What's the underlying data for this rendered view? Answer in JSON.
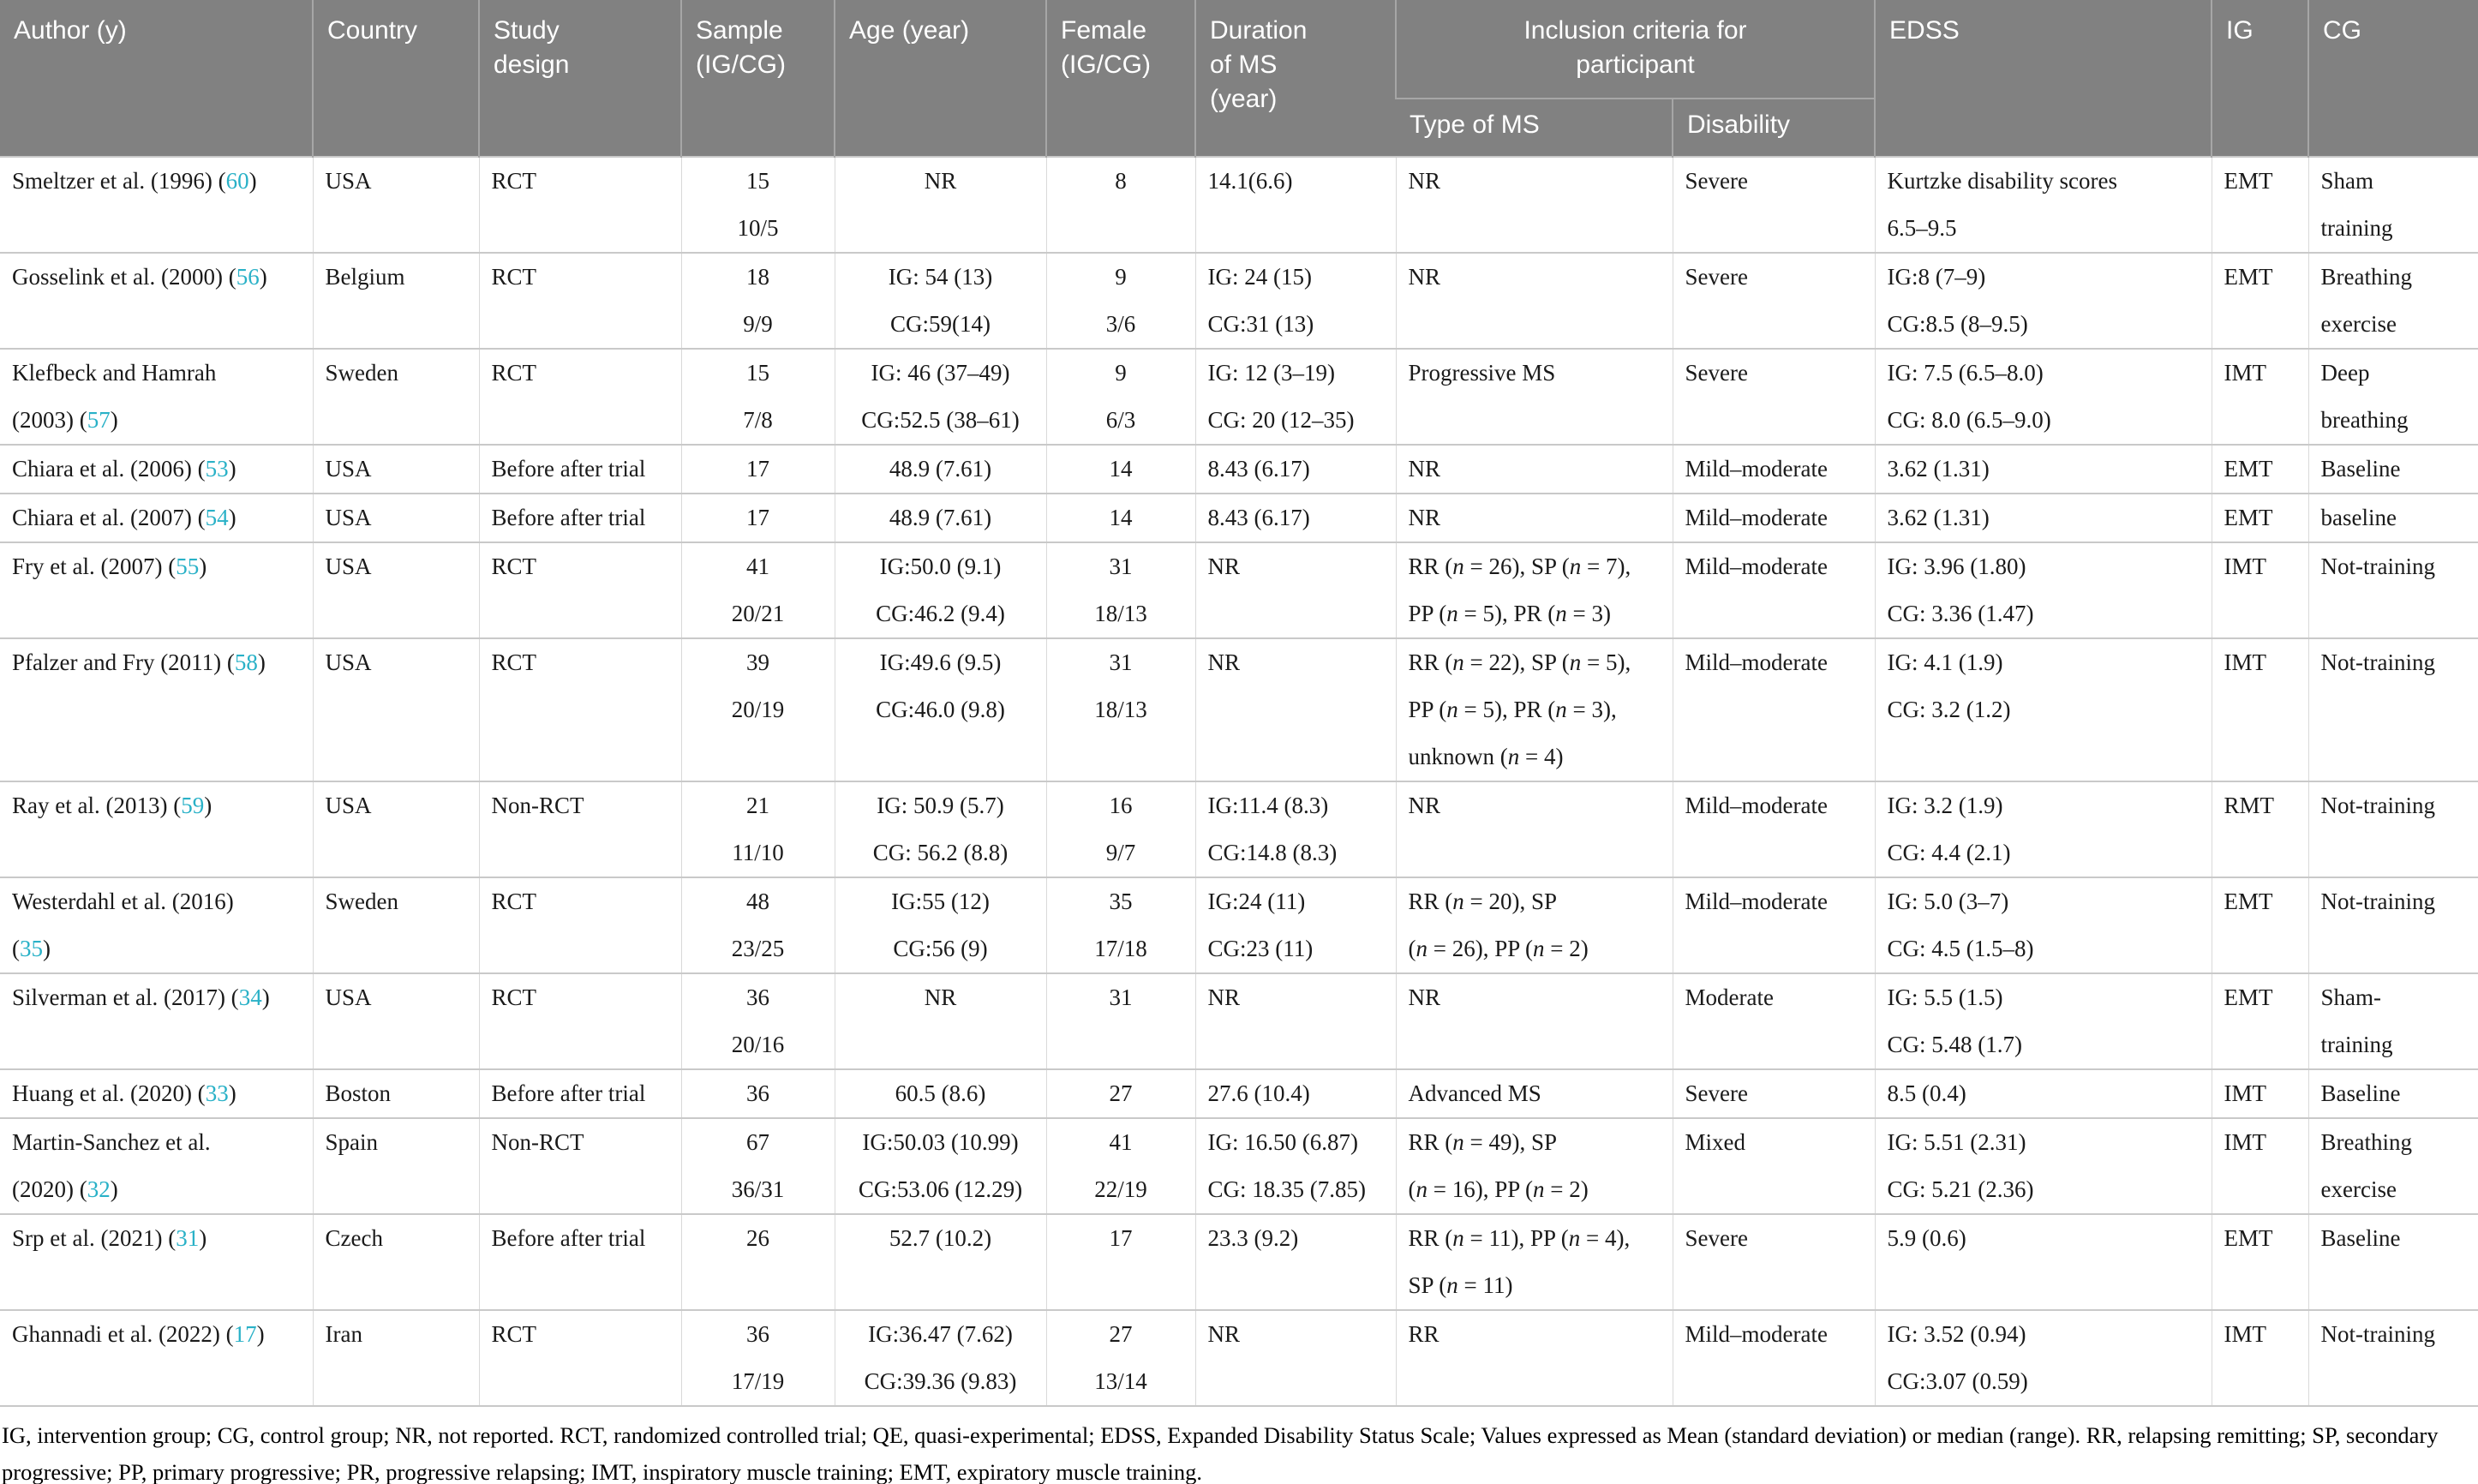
{
  "accent_colors": {
    "header_background": "#818181",
    "header_text": "#ffffff",
    "citation_teal": "#29b1c7",
    "row_border": "#c9c9c9"
  },
  "columns": {
    "author": "Author (y)",
    "country": "Country",
    "study_design": "Study\ndesign",
    "sample": "Sample\n(IG/CG)",
    "age": "Age (year)",
    "female": "Female\n(IG/CG)",
    "duration": "Duration\nof MS\n(year)",
    "inclusion_group": "Inclusion criteria for\nparticipant",
    "type_of_ms": "Type of MS",
    "disability": "Disability",
    "edss": "EDSS",
    "ig": "IG",
    "cg": "CG"
  },
  "rows": [
    {
      "author": [
        "Smeltzer et al. (1996) ([[60]])"
      ],
      "country": "USA",
      "design": "RCT",
      "sample": [
        "15",
        "10/5"
      ],
      "age": [
        "NR"
      ],
      "female": [
        "8"
      ],
      "duration": [
        "14.1(6.6)"
      ],
      "type_ms": [
        "NR"
      ],
      "disability": "Severe",
      "edss": [
        "Kurtzke disability scores",
        "6.5–9.5"
      ],
      "ig": "EMT",
      "cg": [
        "Sham",
        "training"
      ]
    },
    {
      "author": [
        "Gosselink et al. (2000) ([[56]])"
      ],
      "country": "Belgium",
      "design": "RCT",
      "sample": [
        "18",
        "9/9"
      ],
      "age": [
        "IG: 54 (13)",
        "CG:59(14)"
      ],
      "female": [
        "9",
        "3/6"
      ],
      "duration": [
        "IG: 24 (15)",
        "CG:31 (13)"
      ],
      "type_ms": [
        "NR"
      ],
      "disability": "Severe",
      "edss": [
        "IG:8 (7–9)",
        "CG:8.5 (8–9.5)"
      ],
      "ig": "EMT",
      "cg": [
        "Breathing",
        "exercise"
      ]
    },
    {
      "author": [
        "Klefbeck and Hamrah",
        "(2003) ([[57]])"
      ],
      "country": "Sweden",
      "design": "RCT",
      "sample": [
        "15",
        "7/8"
      ],
      "age": [
        "IG: 46 (37–49)",
        "CG:52.5 (38–61)"
      ],
      "female": [
        "9",
        "6/3"
      ],
      "duration": [
        "IG: 12 (3–19)",
        "CG: 20 (12–35)"
      ],
      "type_ms": [
        "Progressive MS"
      ],
      "disability": "Severe",
      "edss": [
        "IG: 7.5 (6.5–8.0)",
        "CG: 8.0 (6.5–9.0)"
      ],
      "ig": "IMT",
      "cg": [
        "Deep",
        "breathing"
      ]
    },
    {
      "author": [
        "Chiara et al. (2006) ([[53]])"
      ],
      "country": "USA",
      "design": "Before after trial",
      "sample": [
        "17"
      ],
      "age": [
        "48.9 (7.61)"
      ],
      "female": [
        "14"
      ],
      "duration": [
        "8.43 (6.17)"
      ],
      "type_ms": [
        "NR"
      ],
      "disability": "Mild–moderate",
      "edss": [
        "3.62 (1.31)"
      ],
      "ig": "EMT",
      "cg": [
        "Baseline"
      ]
    },
    {
      "author": [
        "Chiara et al. (2007) ([[54]])"
      ],
      "country": "USA",
      "design": "Before after trial",
      "sample": [
        "17"
      ],
      "age": [
        "48.9 (7.61)"
      ],
      "female": [
        "14"
      ],
      "duration": [
        "8.43 (6.17)"
      ],
      "type_ms": [
        "NR"
      ],
      "disability": "Mild–moderate",
      "edss": [
        "3.62 (1.31)"
      ],
      "ig": "EMT",
      "cg": [
        "baseline"
      ]
    },
    {
      "author": [
        "Fry et al. (2007) ([[55]])"
      ],
      "country": "USA",
      "design": "RCT",
      "sample": [
        "41",
        "20/21"
      ],
      "age": [
        "IG:50.0 (9.1)",
        "CG:46.2 (9.4)"
      ],
      "female": [
        "31",
        "18/13"
      ],
      "duration": [
        "NR"
      ],
      "type_ms": [
        "RR (n = 26), SP (n = 7),",
        "PP (n = 5), PR (n = 3)"
      ],
      "disability": "Mild–moderate",
      "edss": [
        "IG: 3.96 (1.80)",
        "CG: 3.36 (1.47)"
      ],
      "ig": "IMT",
      "cg": [
        "Not-training"
      ]
    },
    {
      "author": [
        "Pfalzer and Fry (2011) ([[58]])"
      ],
      "country": "USA",
      "design": "RCT",
      "sample": [
        "39",
        "20/19"
      ],
      "age": [
        "IG:49.6 (9.5)",
        "CG:46.0 (9.8)"
      ],
      "female": [
        "31",
        "18/13"
      ],
      "duration": [
        "NR"
      ],
      "type_ms": [
        "RR (n = 22), SP (n = 5),",
        "PP (n = 5), PR (n = 3),",
        "unknown (n = 4)"
      ],
      "disability": "Mild–moderate",
      "edss": [
        "IG: 4.1 (1.9)",
        "CG: 3.2 (1.2)"
      ],
      "ig": "IMT",
      "cg": [
        "Not-training"
      ]
    },
    {
      "author": [
        "Ray et al. (2013) ([[59]])"
      ],
      "country": "USA",
      "design": "Non-RCT",
      "sample": [
        "21",
        "11/10"
      ],
      "age": [
        "IG: 50.9 (5.7)",
        "CG: 56.2 (8.8)"
      ],
      "female": [
        "16",
        "9/7"
      ],
      "duration": [
        "IG:11.4 (8.3)",
        "CG:14.8 (8.3)"
      ],
      "type_ms": [
        "NR"
      ],
      "disability": "Mild–moderate",
      "edss": [
        "IG: 3.2 (1.9)",
        "CG: 4.4 (2.1)"
      ],
      "ig": "RMT",
      "cg": [
        "Not-training"
      ]
    },
    {
      "author": [
        "Westerdahl et al. (2016)",
        "([[35]])"
      ],
      "country": "Sweden",
      "design": "RCT",
      "sample": [
        "48",
        "23/25"
      ],
      "age": [
        "IG:55 (12)",
        "CG:56 (9)"
      ],
      "female": [
        "35",
        "17/18"
      ],
      "duration": [
        "IG:24 (11)",
        "CG:23 (11)"
      ],
      "type_ms": [
        "RR (n = 20), SP",
        "(n = 26), PP (n = 2)"
      ],
      "disability": "Mild–moderate",
      "edss": [
        "IG: 5.0 (3–7)",
        "CG: 4.5 (1.5–8)"
      ],
      "ig": "EMT",
      "cg": [
        "Not-training"
      ]
    },
    {
      "author": [
        "Silverman et al. (2017) ([[34]])"
      ],
      "country": "USA",
      "design": "RCT",
      "sample": [
        "36",
        "20/16"
      ],
      "age": [
        "NR"
      ],
      "female": [
        "31"
      ],
      "duration": [
        "NR"
      ],
      "type_ms": [
        "NR"
      ],
      "disability": "Moderate",
      "edss": [
        "IG: 5.5 (1.5)",
        "CG: 5.48 (1.7)"
      ],
      "ig": "EMT",
      "cg": [
        "Sham-",
        "training"
      ]
    },
    {
      "author": [
        "Huang et al. (2020) ([[33]])"
      ],
      "country": "Boston",
      "design": "Before after trial",
      "sample": [
        "36"
      ],
      "age": [
        "60.5 (8.6)"
      ],
      "female": [
        "27"
      ],
      "duration": [
        "27.6 (10.4)"
      ],
      "type_ms": [
        "Advanced MS"
      ],
      "disability": "Severe",
      "edss": [
        "8.5 (0.4)"
      ],
      "ig": "IMT",
      "cg": [
        "Baseline"
      ]
    },
    {
      "author": [
        "Martin-Sanchez et al.",
        "(2020) ([[32]])"
      ],
      "country": "Spain",
      "design": "Non-RCT",
      "sample": [
        "67",
        "36/31"
      ],
      "age": [
        "IG:50.03 (10.99)",
        "CG:53.06 (12.29)"
      ],
      "female": [
        "41",
        "22/19"
      ],
      "duration": [
        "IG: 16.50 (6.87)",
        "CG: 18.35 (7.85)"
      ],
      "type_ms": [
        "RR (n = 49), SP",
        "(n = 16), PP (n = 2)"
      ],
      "disability": "Mixed",
      "edss": [
        "IG: 5.51 (2.31)",
        "CG: 5.21 (2.36)"
      ],
      "ig": "IMT",
      "cg": [
        "Breathing",
        "exercise"
      ]
    },
    {
      "author": [
        "Srp et al. (2021) ([[31]])"
      ],
      "country": "Czech",
      "design": "Before after trial",
      "sample": [
        "26"
      ],
      "age": [
        "52.7 (10.2)"
      ],
      "female": [
        "17"
      ],
      "duration": [
        "23.3 (9.2)"
      ],
      "type_ms": [
        "RR (n = 11), PP (n = 4),",
        "SP (n = 11)"
      ],
      "disability": "Severe",
      "edss": [
        "5.9 (0.6)"
      ],
      "ig": "EMT",
      "cg": [
        "Baseline"
      ]
    },
    {
      "author": [
        "Ghannadi et al. (2022) ([[17]])"
      ],
      "country": "Iran",
      "design": "RCT",
      "sample": [
        "36",
        "17/19"
      ],
      "age": [
        "IG:36.47 (7.62)",
        "CG:39.36 (9.83)"
      ],
      "female": [
        "27",
        "13/14"
      ],
      "duration": [
        "NR"
      ],
      "type_ms": [
        "RR"
      ],
      "disability": "Mild–moderate",
      "edss": [
        "IG: 3.52 (0.94)",
        "CG:3.07 (0.59)"
      ],
      "ig": "IMT",
      "cg": [
        "Not-training"
      ]
    }
  ],
  "footnote": {
    "text": "IG, intervention group; CG, control group; NR, not reported. RCT, randomized controlled trial; QE, quasi-experimental; EDSS, Expanded Disability Status Scale; Values expressed as Mean (standard deviation) or median (range). RR, relapsing remitting; SP, secondary progressive; PP, primary progressive; PR, progressive relapsing; IMT, inspiratory muscle training; EMT, expiratory muscle training."
  }
}
